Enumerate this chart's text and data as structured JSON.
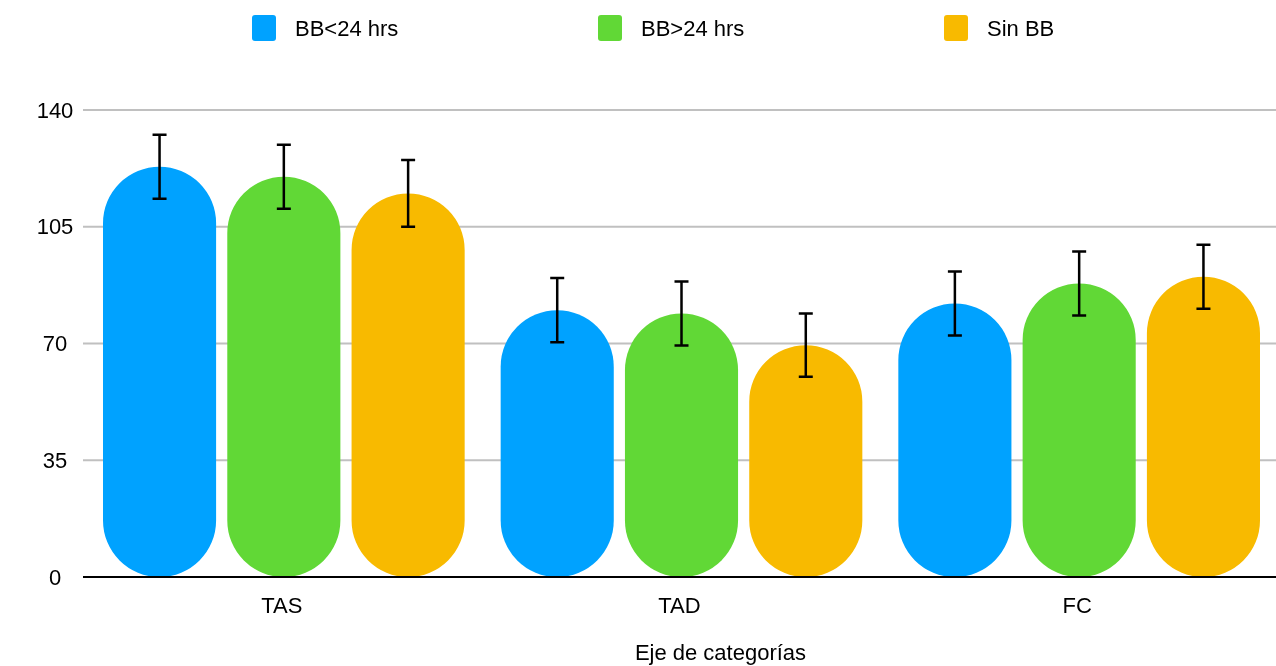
{
  "chart_data": {
    "type": "bar",
    "xlabel": "Eje de categorías",
    "categories": [
      "TAS",
      "TAD",
      "FC"
    ],
    "series": [
      {
        "name": "BB<24 hrs",
        "color": "#00a2ff",
        "values": [
          123,
          80,
          82
        ],
        "errors": [
          9.6,
          9.6,
          9.6
        ]
      },
      {
        "name": "BB>24 hrs",
        "color": "#61d836",
        "values": [
          120,
          79,
          88
        ],
        "errors": [
          9.6,
          9.6,
          9.6
        ]
      },
      {
        "name": "Sin BB",
        "color": "#f8ba00",
        "values": [
          115,
          69.5,
          90
        ],
        "errors": [
          10,
          9.5,
          9.6
        ]
      }
    ],
    "ylim": [
      0,
      140
    ],
    "yticks": [
      0,
      35,
      70,
      105,
      140
    ],
    "grid": "y",
    "legend": "top"
  }
}
